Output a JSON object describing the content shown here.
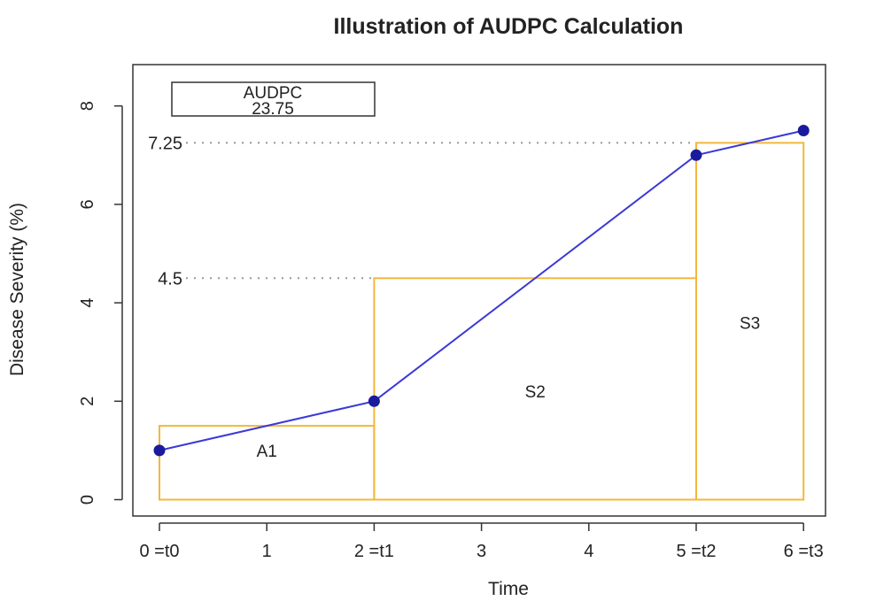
{
  "chart_data": {
    "type": "line",
    "title": "Illustration of AUDPC Calculation",
    "xlabel": "Time",
    "ylabel": "Disease Severity (%)",
    "xlim": [
      -0.2,
      6.5
    ],
    "ylim": [
      -0.3,
      8.8
    ],
    "x_ticks": [
      {
        "value": 0,
        "label": "0 =t0"
      },
      {
        "value": 1,
        "label": "1"
      },
      {
        "value": 2,
        "label": "2 =t1"
      },
      {
        "value": 3,
        "label": "3"
      },
      {
        "value": 4,
        "label": "4"
      },
      {
        "value": 5,
        "label": "5 =t2"
      },
      {
        "value": 6,
        "label": "6 =t3"
      }
    ],
    "y_ticks": [
      {
        "value": 0,
        "label": "0"
      },
      {
        "value": 2,
        "label": "2"
      },
      {
        "value": 4,
        "label": "4"
      },
      {
        "value": 6,
        "label": "6"
      },
      {
        "value": 8,
        "label": "8"
      }
    ],
    "series": [
      {
        "color": "#3a3ad6",
        "x": [
          0,
          2,
          5,
          6
        ],
        "y": [
          1,
          2,
          7,
          7.5
        ]
      }
    ],
    "rectangles": [
      {
        "label": "A1",
        "x0": 0,
        "x1": 2,
        "height": 1.5,
        "label_pos": [
          1,
          1
        ]
      },
      {
        "label": "S2",
        "x0": 2,
        "x1": 5,
        "height": 4.5,
        "label_pos": [
          3.5,
          2.2
        ]
      },
      {
        "label": "S3",
        "x0": 5,
        "x1": 6,
        "height": 7.25,
        "label_pos": [
          5.5,
          3.6
        ]
      }
    ],
    "reference_lines": [
      {
        "value": 4.5,
        "label": "4.5",
        "x_end": 2
      },
      {
        "value": 7.25,
        "label": "7.25",
        "x_end": 5
      }
    ],
    "annotation_box": {
      "title": "AUDPC",
      "value": "23.75"
    },
    "colors": {
      "line": "#3a3ad6",
      "point": "#1a1a9e",
      "rect": "#f4b73a",
      "dotted": "#999999"
    },
    "grid": false,
    "legend": "none"
  }
}
